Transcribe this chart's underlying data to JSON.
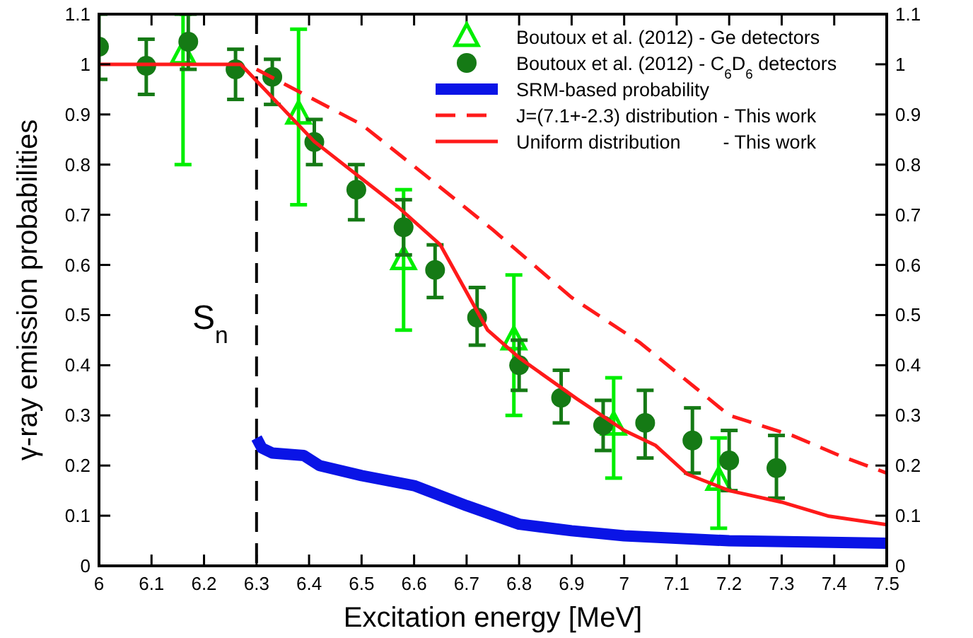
{
  "chart_data": {
    "type": "line",
    "xlabel": "Excitation energy [MeV]",
    "ylabel": "γ-ray emission probabilities",
    "xlim": [
      6,
      7.5
    ],
    "xticks": [
      6,
      6.1,
      6.2,
      6.3,
      6.4,
      6.5,
      6.6,
      6.7,
      6.8,
      6.9,
      7,
      7.1,
      7.2,
      7.3,
      7.4,
      7.5
    ],
    "ylim": [
      0,
      1.1
    ],
    "yticks": [
      0,
      0.1,
      0.2,
      0.3,
      0.4,
      0.5,
      0.6,
      0.7,
      0.8,
      0.9,
      1,
      1.1
    ],
    "y2lim": [
      0,
      1.1
    ],
    "y2ticks": [
      0,
      0.1,
      0.2,
      0.3,
      0.4,
      0.5,
      0.6,
      0.7,
      0.8,
      0.9,
      1,
      1.1
    ],
    "grid": false,
    "legend": "top right",
    "ref_lines": [
      {
        "axis": "x",
        "value": 6.3,
        "label": "S$_{n}$",
        "color": "#000000",
        "line_style": "dashed"
      }
    ],
    "series": [
      {
        "name": "Boutoux et al. (2012) - Ge detectors",
        "type": "scatter",
        "marker": "triangle",
        "color": "#00ee00",
        "x": [
          6.16,
          6.38,
          6.58,
          6.79,
          6.98,
          7.18
        ],
        "values": [
          1.02,
          0.9,
          0.61,
          0.45,
          0.28,
          0.17
        ],
        "errors": [
          [
            0.8,
            1.1
          ],
          [
            0.72,
            1.07
          ],
          [
            0.47,
            0.75
          ],
          [
            0.3,
            0.58
          ],
          [
            0.175,
            0.375
          ],
          [
            0.075,
            0.255
          ]
        ]
      },
      {
        "name": "Boutoux et al. (2012) - C$_{6}$D$_{6}$ detectors",
        "type": "scatter",
        "marker": "circle",
        "color": "#157a15",
        "x": [
          6.0,
          6.09,
          6.17,
          6.26,
          6.33,
          6.41,
          6.49,
          6.58,
          6.64,
          6.72,
          6.8,
          6.88,
          6.96,
          7.04,
          7.13,
          7.2,
          7.29
        ],
        "values": [
          1.035,
          0.997,
          1.045,
          0.99,
          0.975,
          0.845,
          0.75,
          0.675,
          0.59,
          0.495,
          0.4,
          0.335,
          0.28,
          0.285,
          0.25,
          0.21,
          0.195
        ],
        "errors": [
          [
            0.97,
            1.1
          ],
          [
            0.94,
            1.05
          ],
          [
            0.99,
            1.1
          ],
          [
            0.93,
            1.03
          ],
          [
            0.92,
            1.01
          ],
          [
            0.8,
            0.89
          ],
          [
            0.69,
            0.8
          ],
          [
            0.62,
            0.73
          ],
          [
            0.535,
            0.64
          ],
          [
            0.44,
            0.555
          ],
          [
            0.35,
            0.45
          ],
          [
            0.285,
            0.39
          ],
          [
            0.23,
            0.33
          ],
          [
            0.215,
            0.35
          ],
          [
            0.185,
            0.315
          ],
          [
            0.15,
            0.27
          ],
          [
            0.135,
            0.26
          ]
        ]
      },
      {
        "name": "SRM-based probability",
        "marker": "none",
        "line_style": "solid",
        "color": "#0a14e6",
        "x": [
          6.3,
          6.31,
          6.33,
          6.39,
          6.42,
          6.5,
          6.6,
          6.7,
          6.8,
          6.9,
          7.0,
          7.2,
          7.5
        ],
        "values": [
          0.255,
          0.235,
          0.225,
          0.22,
          0.2,
          0.18,
          0.16,
          0.12,
          0.083,
          0.07,
          0.06,
          0.05,
          0.045
        ]
      },
      {
        "name": "J=(7.1+-2.3) distribution - This work",
        "marker": "none",
        "line_style": "dashed",
        "color": "#ff1a1a",
        "x": [
          6.3,
          6.5,
          6.62,
          6.75,
          6.9,
          7.03,
          7.13,
          7.2,
          7.32,
          7.41,
          7.5
        ],
        "values": [
          0.99,
          0.88,
          0.78,
          0.67,
          0.535,
          0.445,
          0.36,
          0.3,
          0.26,
          0.22,
          0.185
        ]
      },
      {
        "name": "Uniform distribution        - This work",
        "marker": "none",
        "line_style": "solid",
        "color": "#ff1a1a",
        "x": [
          6.0,
          6.27,
          6.41,
          6.57,
          6.65,
          6.74,
          6.8,
          6.91,
          7.0,
          7.06,
          7.12,
          7.2,
          7.3,
          7.39,
          7.5
        ],
        "values": [
          1.0,
          1.0,
          0.846,
          0.715,
          0.64,
          0.47,
          0.415,
          0.333,
          0.27,
          0.24,
          0.183,
          0.15,
          0.127,
          0.099,
          0.082
        ]
      }
    ]
  }
}
